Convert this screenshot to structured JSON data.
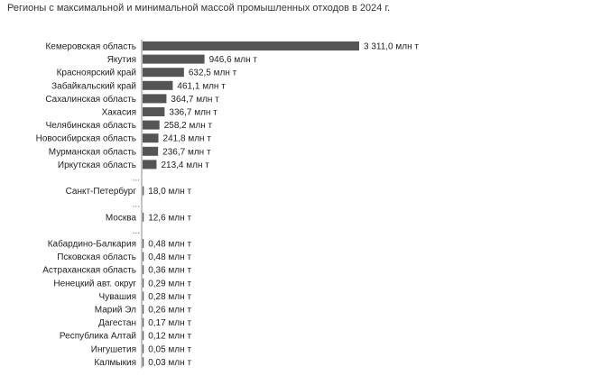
{
  "chart_data": {
    "type": "bar",
    "orientation": "horizontal",
    "title": "Регионы с максимальной и минимальной массой промышленных отходов в 2024 г.",
    "unit": "млн т",
    "bar_color": "#555555",
    "gap_marker": "...",
    "groups": [
      {
        "items": [
          {
            "category": "Кемеровская область",
            "value": 3311.0,
            "label": "3 311,0 млн т"
          },
          {
            "category": "Якутия",
            "value": 946.6,
            "label": "946,6 млн т"
          },
          {
            "category": "Красноярский край",
            "value": 632.5,
            "label": "632,5 млн т"
          },
          {
            "category": "Забайкальский край",
            "value": 461.1,
            "label": "461,1 млн т"
          },
          {
            "category": "Сахалинская область",
            "value": 364.7,
            "label": "364,7 млн т"
          },
          {
            "category": "Хакасия",
            "value": 336.7,
            "label": "336,7 млн т"
          },
          {
            "category": "Челябинская область",
            "value": 258.2,
            "label": "258,2 млн т"
          },
          {
            "category": "Новосибирская область",
            "value": 241.8,
            "label": "241,8 млн т"
          },
          {
            "category": "Мурманская область",
            "value": 236.7,
            "label": "236,7 млн т"
          },
          {
            "category": "Иркутская область",
            "value": 213.4,
            "label": "213,4 млн т"
          }
        ]
      },
      {
        "items": [
          {
            "category": "Санкт-Петербург",
            "value": 18.0,
            "label": "18,0 млн т"
          }
        ]
      },
      {
        "items": [
          {
            "category": "Москва",
            "value": 12.6,
            "label": "12,6 млн т"
          }
        ]
      },
      {
        "items": [
          {
            "category": "Кабардино-Балкария",
            "value": 0.48,
            "label": "0,48 млн т"
          },
          {
            "category": "Псковская область",
            "value": 0.48,
            "label": "0,48 млн т"
          },
          {
            "category": "Астраханская область",
            "value": 0.36,
            "label": "0,36 млн т"
          },
          {
            "category": "Ненецкий авт. округ",
            "value": 0.29,
            "label": "0,29 млн т"
          },
          {
            "category": "Чувашия",
            "value": 0.28,
            "label": "0,28 млн т"
          },
          {
            "category": "Марий Эл",
            "value": 0.26,
            "label": "0,26 млн т"
          },
          {
            "category": "Дагестан",
            "value": 0.17,
            "label": "0,17 млн т"
          },
          {
            "category": "Республика Алтай",
            "value": 0.12,
            "label": "0,12 млн т"
          },
          {
            "category": "Ингушетия",
            "value": 0.05,
            "label": "0,05 млн т"
          },
          {
            "category": "Калмыкия",
            "value": 0.03,
            "label": "0,03 млн т"
          }
        ]
      }
    ],
    "xlim": [
      0,
      3311.0
    ]
  }
}
